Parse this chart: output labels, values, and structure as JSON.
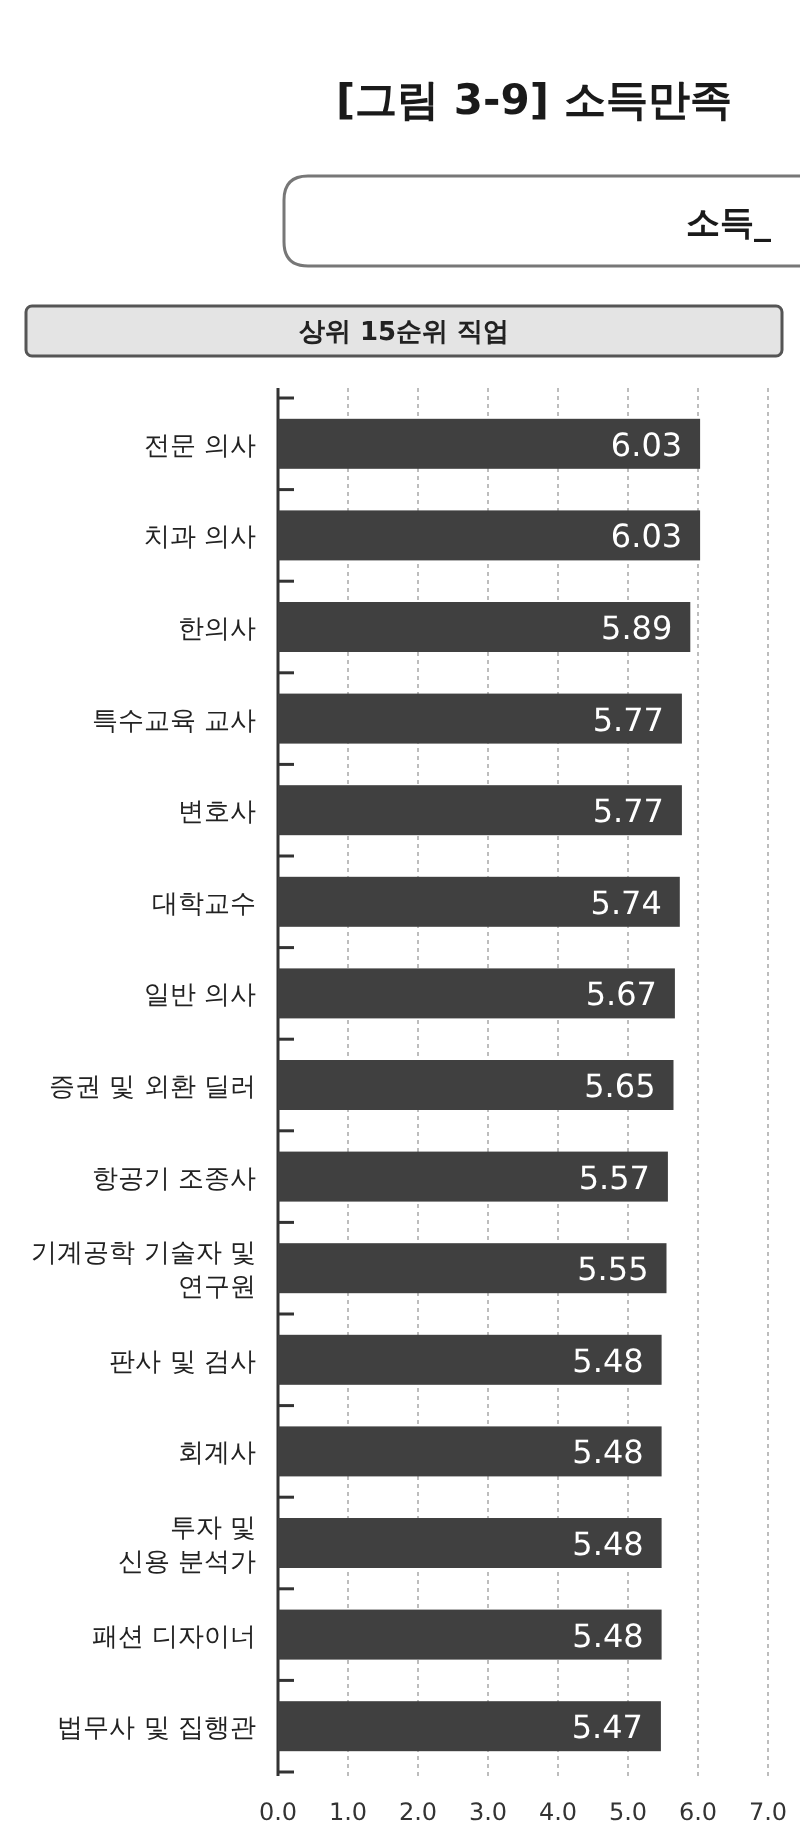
{
  "chart_data": {
    "type": "bar",
    "orientation": "horizontal",
    "title": "[그림 3-9] 소득만족",
    "subtitle": "소득_",
    "annotations": [
      "상위 15순위 직업"
    ],
    "categories": [
      "전문 의사",
      "치과 의사",
      "한의사",
      "특수교육 교사",
      "변호사",
      "대학교수",
      "일반 의사",
      "증권 및 외환 딜러",
      "항공기 조종사",
      "기계공학 기술자 및\n연구원",
      "판사 및 검사",
      "회계사",
      "투자 및\n신용 분석가",
      "패션 디자이너",
      "법무사 및 집행관"
    ],
    "values": [
      6.03,
      6.03,
      5.89,
      5.77,
      5.77,
      5.74,
      5.67,
      5.65,
      5.57,
      5.55,
      5.48,
      5.48,
      5.48,
      5.48,
      5.47
    ],
    "color": "#404040",
    "xlim": [
      0,
      7
    ],
    "xticks": [
      {
        "value": 0,
        "label": "0.0"
      },
      {
        "value": 1,
        "label": "1.0"
      },
      {
        "value": 2,
        "label": "2.0"
      },
      {
        "value": 3,
        "label": "3.0"
      },
      {
        "value": 4,
        "label": "4.0"
      },
      {
        "value": 5,
        "label": "5.0"
      },
      {
        "value": 6,
        "label": "6.0"
      },
      {
        "value": 7,
        "label": "7.0"
      }
    ],
    "grid": "x",
    "data_labels": true
  }
}
